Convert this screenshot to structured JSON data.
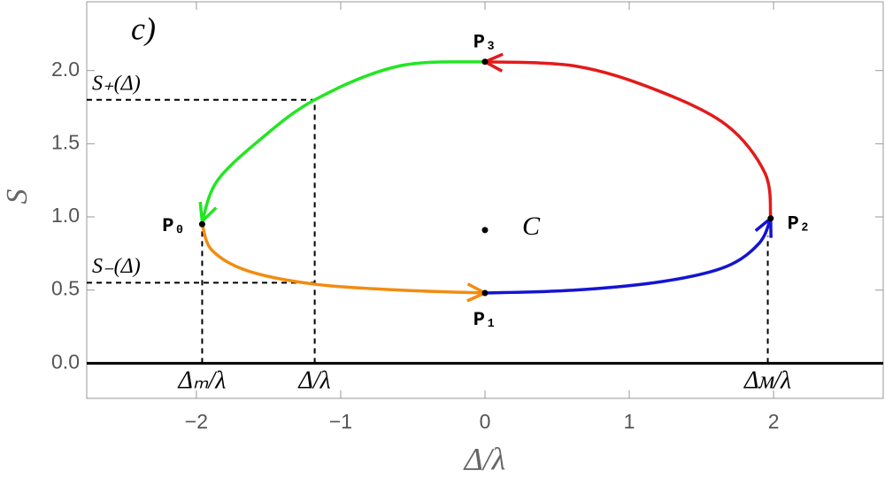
{
  "chart_data": {
    "type": "line",
    "panel_label": "c)",
    "x_label": "Δ/λ",
    "y_label": "S",
    "xlim": [
      -2.76,
      2.76
    ],
    "ylim": [
      -0.24,
      2.47
    ],
    "xticks": [
      {
        "value": -2,
        "label": "−2"
      },
      {
        "value": -1,
        "label": "−1"
      },
      0,
      1,
      2
    ],
    "yticks": [
      {
        "value": 0,
        "label": "0.0"
      },
      0.5,
      {
        "value": 1,
        "label": "1.0"
      },
      1.5,
      {
        "value": 2,
        "label": "2.0"
      }
    ],
    "series": [
      {
        "color": "#22e622",
        "x": [
          0,
          -0.6,
          -1.18,
          -1.58,
          -1.86,
          -1.96
        ],
        "y": [
          2.06,
          2.03,
          1.8,
          1.51,
          1.24,
          0.97
        ]
      },
      {
        "color": "#e31a1a",
        "x": [
          1.98,
          1.94,
          1.67,
          1.18,
          0.63,
          0
        ],
        "y": [
          0.99,
          1.3,
          1.63,
          1.87,
          2.03,
          2.06
        ]
      },
      {
        "color": "#1414d2",
        "x": [
          0,
          0.63,
          1.24,
          1.67,
          1.9,
          1.98
        ],
        "y": [
          0.48,
          0.5,
          0.56,
          0.66,
          0.82,
          0.99
        ]
      },
      {
        "color": "#f28c10",
        "x": [
          -1.96,
          -1.89,
          -1.64,
          -1.18,
          -0.6,
          0
        ],
        "y": [
          0.95,
          0.77,
          0.63,
          0.54,
          0.5,
          0.48
        ]
      }
    ],
    "points": [
      {
        "label": "P₀",
        "x": -1.96,
        "y": 0.95
      },
      {
        "label": "P₁",
        "x": 0,
        "y": 0.48
      },
      {
        "label": "P₂",
        "x": 1.98,
        "y": 0.99
      },
      {
        "label": "P₃",
        "x": 0,
        "y": 2.06
      },
      {
        "label": "C",
        "x": 0,
        "y": 0.91
      }
    ],
    "markers": [
      {
        "label": "Δₘ/λ",
        "x": -1.96,
        "y": 0.95
      },
      {
        "label": "Δ/λ",
        "x": -1.18,
        "y": 1.8
      },
      {
        "label": "Δᴍ/λ",
        "x": 1.96,
        "y": 0.87
      }
    ],
    "levels": [
      {
        "label": "S₊(Δ)",
        "x": -1.18,
        "y": 1.8
      },
      {
        "label": "S₋(Δ)",
        "x": -1.18,
        "y": 0.55
      }
    ]
  }
}
